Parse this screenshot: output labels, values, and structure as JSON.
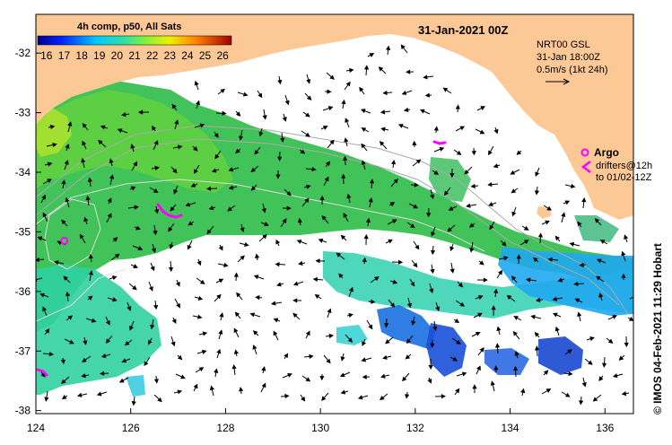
{
  "map": {
    "date_label": "31-Jan-2021 00Z",
    "lon_ticks": [
      124,
      126,
      128,
      130,
      132,
      134,
      136
    ],
    "lat_ticks": [
      -32,
      -33,
      -34,
      -35,
      -36,
      -37,
      -38
    ],
    "lon_range": [
      124,
      136.6
    ],
    "lat_range": [
      -31.35,
      -38.05
    ]
  },
  "colorbar": {
    "title": "4h comp, p50, All Sats",
    "ticks": [
      16,
      17,
      18,
      19,
      20,
      21,
      22,
      23,
      24,
      25,
      26
    ],
    "range": [
      15.5,
      26.5
    ]
  },
  "currents": {
    "line1": "NRT00 GSL",
    "line2": "31-Jan 18:00Z",
    "line3": "0.5m/s (1kt 24h)"
  },
  "argo": {
    "label": "Argo",
    "drifters_line1": "drifters@12h",
    "drifters_line2": "to 01/02-12Z",
    "float_lonlat": [
      124.6,
      -35.15
    ]
  },
  "credit": "© IMOS 04-Feb-2021 11:29 Hobart",
  "colors": {
    "land": "#fcc896",
    "drifter": "#ff00ff",
    "contour": "#aaaaaa"
  }
}
